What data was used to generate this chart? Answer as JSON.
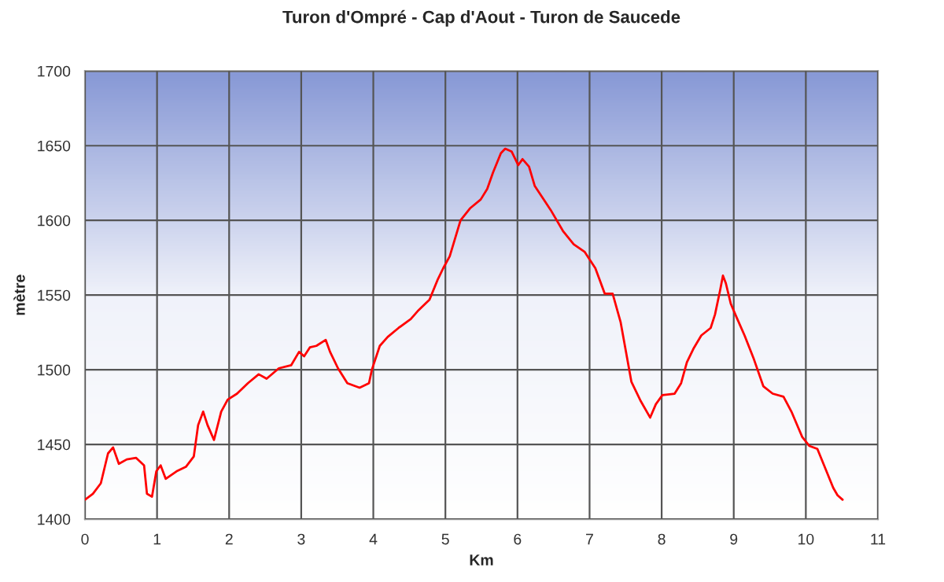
{
  "chart_data": {
    "type": "line",
    "title": "Turon d'Ompré - Cap d'Aout - Turon de Saucede",
    "xlabel": "Km",
    "ylabel": "mètre",
    "xlim": [
      0,
      11
    ],
    "xticks": [
      0,
      1,
      2,
      3,
      4,
      5,
      6,
      7,
      8,
      9,
      10,
      11
    ],
    "ylim": [
      1400,
      1700
    ],
    "yticks": [
      1400,
      1450,
      1500,
      1550,
      1600,
      1650,
      1700
    ],
    "grid": true,
    "marker": "none",
    "line_style": "solid",
    "series": [
      {
        "color": "#ff0000",
        "x": [
          0,
          0.11,
          0.22,
          0.32,
          0.39,
          0.47,
          0.58,
          0.71,
          0.82,
          0.86,
          0.93,
          0.99,
          1.05,
          1.12,
          1.27,
          1.4,
          1.51,
          1.57,
          1.64,
          1.7,
          1.79,
          1.89,
          1.98,
          2.11,
          2.26,
          2.41,
          2.52,
          2.69,
          2.86,
          2.97,
          3.04,
          3.12,
          3.21,
          3.34,
          3.4,
          3.51,
          3.64,
          3.81,
          3.94,
          3.98,
          4.09,
          4.2,
          4.35,
          4.52,
          4.63,
          4.78,
          4.89,
          4.97,
          5.06,
          5.21,
          5.34,
          5.49,
          5.58,
          5.66,
          5.77,
          5.83,
          5.92,
          6.01,
          6.07,
          6.16,
          6.24,
          6.46,
          6.63,
          6.78,
          6.93,
          7.08,
          7.21,
          7.32,
          7.43,
          7.58,
          7.71,
          7.84,
          7.92,
          8.01,
          8.18,
          8.27,
          8.35,
          8.44,
          8.55,
          8.68,
          8.74,
          8.81,
          8.85,
          8.89,
          8.96,
          9.04,
          9.15,
          9.28,
          9.41,
          9.54,
          9.69,
          9.8,
          9.95,
          10.05,
          10.16,
          10.27,
          10.38,
          10.44,
          10.51
        ],
        "values": [
          1413,
          1417,
          1424,
          1444,
          1448,
          1437,
          1440,
          1441,
          1436,
          1417,
          1415,
          1432,
          1436,
          1427,
          1432,
          1435,
          1442,
          1463,
          1472,
          1463,
          1453,
          1472,
          1480,
          1484,
          1491,
          1497,
          1494,
          1501,
          1503,
          1512,
          1509,
          1515,
          1516,
          1520,
          1512,
          1501,
          1491,
          1488,
          1491,
          1500,
          1516,
          1522,
          1528,
          1534,
          1540,
          1547,
          1560,
          1568,
          1576,
          1600,
          1608,
          1614,
          1621,
          1632,
          1645,
          1648,
          1646,
          1637,
          1641,
          1636,
          1623,
          1607,
          1593,
          1584,
          1579,
          1568,
          1551,
          1551,
          1532,
          1492,
          1479,
          1468,
          1477,
          1483,
          1484,
          1491,
          1505,
          1514,
          1523,
          1528,
          1537,
          1553,
          1563,
          1558,
          1544,
          1535,
          1523,
          1507,
          1489,
          1484,
          1482,
          1472,
          1455,
          1449,
          1447,
          1434,
          1421,
          1416,
          1413
        ]
      }
    ]
  }
}
